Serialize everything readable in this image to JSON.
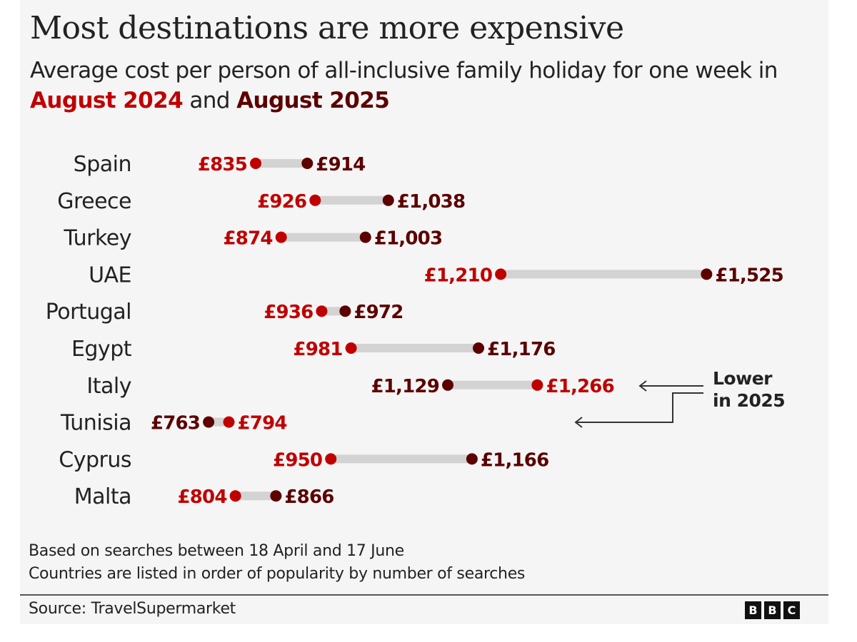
{
  "header": {
    "title": "Most destinations are more expensive",
    "subtitle_prefix": "Average cost per person of all-inclusive family holiday for one week in ",
    "subtitle_year1": "August 2024",
    "subtitle_mid": " and ",
    "subtitle_year2": "August 2025"
  },
  "colors": {
    "year_2024": "#c00000",
    "year_2025": "#5c0000",
    "connector": "#d3d3d3",
    "background": "#f5f5f5"
  },
  "chart_data": {
    "type": "dumbbell",
    "title": "Most destinations are more expensive",
    "subtitle": "Average cost per person of all-inclusive family holiday for one week in August 2024 and August 2025",
    "unit": "£",
    "series_names": [
      "August 2024",
      "August 2025"
    ],
    "categories": [
      "Spain",
      "Greece",
      "Turkey",
      "UAE",
      "Portugal",
      "Egypt",
      "Italy",
      "Tunisia",
      "Cyprus",
      "Malta"
    ],
    "series": [
      {
        "name": "August 2024",
        "values": [
          835,
          926,
          874,
          1210,
          936,
          981,
          1266,
          794,
          950,
          804
        ]
      },
      {
        "name": "August 2025",
        "values": [
          914,
          1038,
          1003,
          1525,
          972,
          1176,
          1129,
          763,
          1166,
          866
        ]
      }
    ],
    "labels_2024": [
      "£835",
      "£926",
      "£874",
      "£1,210",
      "£936",
      "£981",
      "£1,266",
      "£794",
      "£950",
      "£804"
    ],
    "labels_2025": [
      "£914",
      "£1,038",
      "£1,003",
      "£1,525",
      "£972",
      "£1,176",
      "£1,129",
      "£763",
      "£1,166",
      "£866"
    ],
    "annotation": {
      "line1": "Lower",
      "line2": "in 2025",
      "targets": [
        "Italy",
        "Tunisia"
      ]
    },
    "grid": false,
    "legend": "subtitle"
  },
  "footer": {
    "note1": "Based on searches between 18 April and 17 June",
    "note2": "Countries are listed in order of popularity by number of searches",
    "source": "Source: TravelSupermarket",
    "logo_letters": [
      "B",
      "B",
      "C"
    ]
  }
}
